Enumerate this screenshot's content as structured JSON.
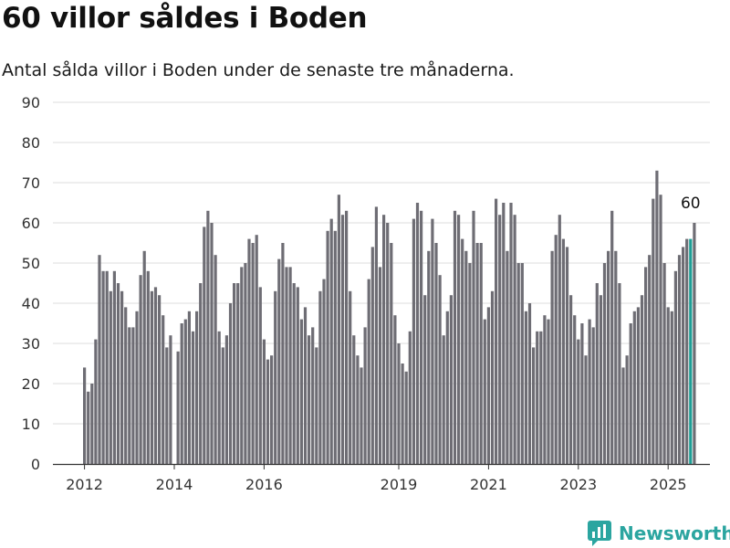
{
  "title": "60 villor såldes i Boden",
  "subtitle": "Antal sålda villor i Boden under de senaste tre månaderna.",
  "brand": {
    "name": "Newsworthy",
    "icon": "chart-bubble-icon",
    "color": "#2ba5a0"
  },
  "colors": {
    "bar": "#6e6d74",
    "highlight": "#1f9e96",
    "grid": "#dddddd",
    "axis": "#333333",
    "tick_text": "#333333"
  },
  "chart_data": {
    "type": "bar",
    "title": "60 villor såldes i Boden",
    "subtitle": "Antal sålda villor i Boden under de senaste tre månaderna.",
    "xlabel": "",
    "ylabel": "",
    "ylim": [
      0,
      90
    ],
    "yticks": [
      0,
      10,
      20,
      30,
      40,
      50,
      60,
      70,
      80,
      90
    ],
    "x_start": "2012-01",
    "x_ticks": [
      {
        "label": "2012",
        "index": 0
      },
      {
        "label": "2014",
        "index": 24
      },
      {
        "label": "2016",
        "index": 48
      },
      {
        "label": "2019",
        "index": 84
      },
      {
        "label": "2021",
        "index": 108
      },
      {
        "label": "2023",
        "index": 132
      },
      {
        "label": "2025",
        "index": 156
      }
    ],
    "grid": true,
    "highlight": {
      "index": 162,
      "value": 60,
      "label": "60"
    },
    "values": [
      24,
      18,
      20,
      31,
      52,
      48,
      48,
      43,
      48,
      45,
      43,
      39,
      34,
      34,
      38,
      47,
      53,
      48,
      43,
      44,
      42,
      37,
      29,
      32,
      null,
      28,
      35,
      36,
      38,
      33,
      38,
      45,
      59,
      63,
      60,
      52,
      33,
      29,
      32,
      40,
      45,
      45,
      49,
      50,
      56,
      55,
      57,
      44,
      31,
      26,
      27,
      43,
      51,
      55,
      49,
      49,
      45,
      44,
      36,
      39,
      32,
      34,
      29,
      43,
      46,
      58,
      61,
      58,
      67,
      62,
      63,
      43,
      32,
      27,
      24,
      34,
      46,
      54,
      64,
      49,
      62,
      60,
      55,
      37,
      30,
      25,
      23,
      33,
      61,
      65,
      63,
      42,
      53,
      61,
      55,
      47,
      32,
      38,
      42,
      63,
      62,
      56,
      53,
      50,
      63,
      55,
      55,
      36,
      39,
      43,
      66,
      62,
      65,
      53,
      65,
      62,
      50,
      50,
      38,
      40,
      29,
      33,
      33,
      37,
      36,
      53,
      57,
      62,
      56,
      54,
      42,
      37,
      31,
      35,
      27,
      36,
      34,
      45,
      42,
      50,
      53,
      63,
      53,
      45,
      24,
      27,
      35,
      38,
      39,
      42,
      49,
      52,
      66,
      73,
      67,
      50,
      39,
      38,
      48,
      52,
      54,
      56,
      56,
      60
    ]
  }
}
